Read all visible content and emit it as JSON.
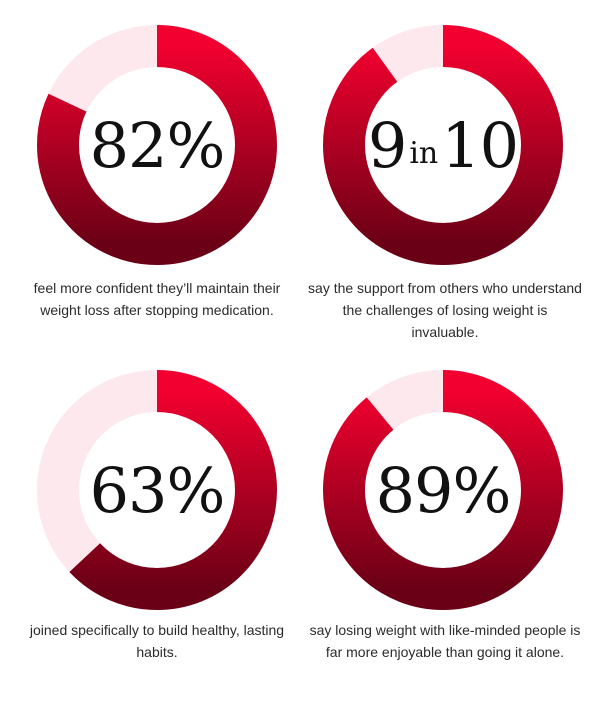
{
  "colors": {
    "ring_light": "#fde8ee",
    "ring_dark": "#6a0015",
    "ring_bright": "#f2002f"
  },
  "stats": [
    {
      "value": "82%",
      "fraction": 0.82,
      "caption": "feel more confident they’ll maintain their weight loss after stopping medication."
    },
    {
      "value_main": "9",
      "value_small": "in",
      "value_end": "10",
      "fraction": 0.9,
      "caption": "say the support from others who understand the challenges of losing weight is invaluable."
    },
    {
      "value": "63%",
      "fraction": 0.63,
      "caption": "joined specifically to build healthy, lasting habits."
    },
    {
      "value": "89%",
      "fraction": 0.89,
      "caption": "say losing weight with like-minded people is far more enjoyable than going it alone."
    }
  ]
}
